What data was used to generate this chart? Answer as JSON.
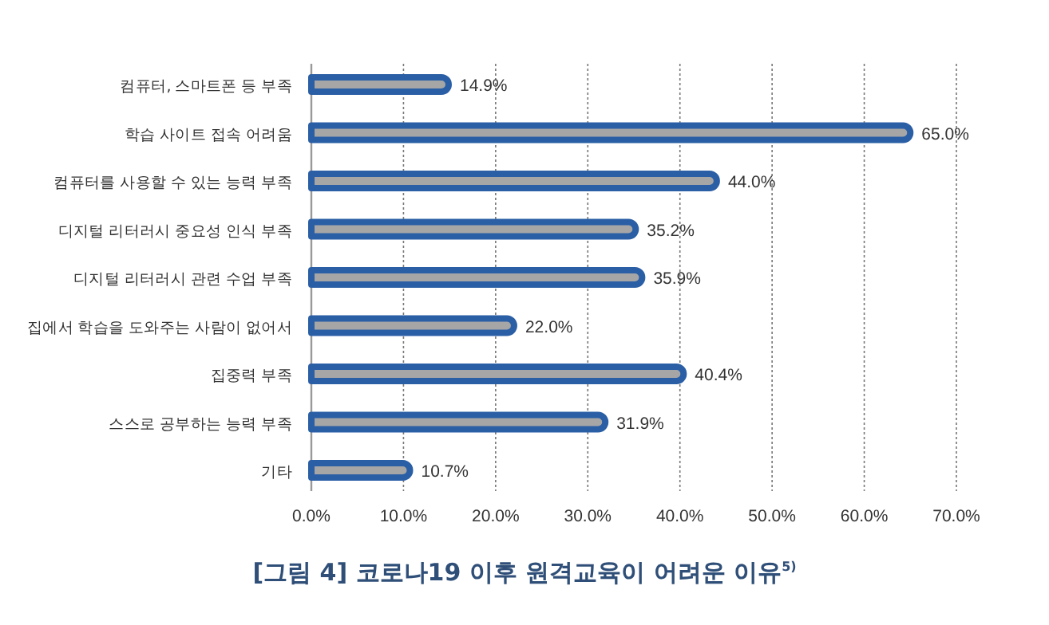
{
  "chart_data": {
    "type": "bar",
    "orientation": "horizontal",
    "title": "[그림 4] 코로나19 이후 원격교육이 어려운 이유$^{5)}$",
    "categories": [
      "컴퓨터, 스마트폰 등 부족",
      "학습 사이트 접속 어려움",
      "컴퓨터를 사용할 수 있는 능력 부족",
      "디지털 리터러시 중요성 인식 부족",
      "디지털 리터러시 관련 수업 부족",
      "집에서 학습을 도와주는 사람이 없어서",
      "집중력 부족",
      "스스로 공부하는 능력 부족",
      "기타"
    ],
    "values": [
      14.9,
      65.0,
      44.0,
      35.2,
      35.9,
      22.0,
      40.4,
      31.9,
      10.7
    ],
    "value_labels": [
      "14.9%",
      "65.0%",
      "44.0%",
      "35.2%",
      "35.9%",
      "22.0%",
      "40.4%",
      "31.9%",
      "10.7%"
    ],
    "color": "#a6a6a6",
    "xlim": [
      0,
      70
    ],
    "xticks": [
      {
        "value": 0,
        "label": "0.0%"
      },
      {
        "value": 10,
        "label": "10.0%"
      },
      {
        "value": 20,
        "label": "20.0%"
      },
      {
        "value": 30,
        "label": "30.0%"
      },
      {
        "value": 40,
        "label": "40.0%"
      },
      {
        "value": 50,
        "label": "50.0%"
      },
      {
        "value": 60,
        "label": "60.0%"
      },
      {
        "value": 70,
        "label": "70.0%"
      }
    ],
    "grid": "x"
  }
}
